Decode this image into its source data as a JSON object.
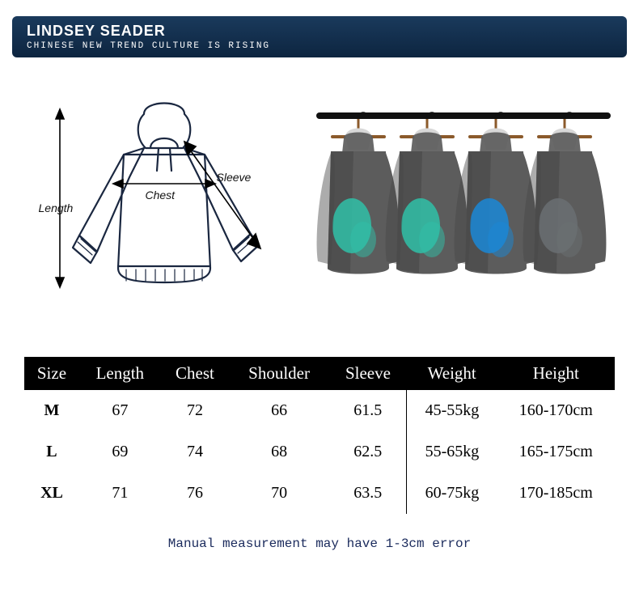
{
  "banner": {
    "title": "LINDSEY SEADER",
    "subtitle": "CHINESE NEW TREND CULTURE IS RISING",
    "bg_top": "#1a3a5c",
    "bg_bottom": "#0d2540"
  },
  "diagram": {
    "labels": {
      "length": "Length",
      "chest": "Chest",
      "sleeve": "Sleeve"
    },
    "outline_color": "#1a2740",
    "outline_width": 2
  },
  "rack": {
    "bar_color": "#111111",
    "hanger_color": "#8b5a2b",
    "hoodie_base": "#5c5c5c",
    "hoodie_shadow": "#464646",
    "accents": [
      "#2fbfa7",
      "#2fbfa7",
      "#1a87d6",
      "#6a6f72"
    ]
  },
  "table": {
    "columns": [
      "Size",
      "Length",
      "Chest",
      "Shoulder",
      "Sleeve",
      "Weight",
      "Height"
    ],
    "rows": [
      {
        "size": "M",
        "length": "67",
        "chest": "72",
        "shoulder": "66",
        "sleeve": "61.5",
        "weight": "45-55kg",
        "height": "160-170cm"
      },
      {
        "size": "L",
        "length": "69",
        "chest": "74",
        "shoulder": "68",
        "sleeve": "62.5",
        "weight": "55-65kg",
        "height": "165-175cm"
      },
      {
        "size": "XL",
        "length": "71",
        "chest": "76",
        "shoulder": "70",
        "sleeve": "63.5",
        "weight": "60-75kg",
        "height": "170-185cm"
      }
    ],
    "header_bg": "#000000",
    "header_fg": "#ffffff",
    "font": "Georgia"
  },
  "footnote": "Manual measurement may have 1-3cm error"
}
